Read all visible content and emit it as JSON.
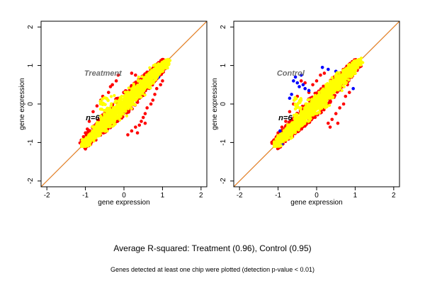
{
  "caption": "Average R-squared: Treatment (0.96), Control (0.95)",
  "footnote": "Genes detected at least one chip were plotted (detection p-value < 0.01)",
  "colors": {
    "replicate_a": "#ff0000",
    "replicate_b": "#0000ff",
    "overlap": "#ffff00",
    "fit_line": "#ff8c00",
    "identity_line": "#0000ff"
  },
  "chart_data": [
    {
      "type": "scatter",
      "title": "Treatment",
      "overlay_label": "n=6",
      "xlabel": "gene expression",
      "ylabel": "gene expression",
      "xlim": [
        -2.15,
        2.15
      ],
      "ylim": [
        -2.15,
        2.15
      ],
      "xticks": [
        -2,
        -1,
        0,
        1,
        2
      ],
      "yticks": [
        -2,
        -1,
        0,
        1,
        2
      ],
      "grid": false,
      "point_cloud": {
        "x_range": [
          -1.1,
          1.2
        ],
        "y_range": [
          -1.1,
          1.25
        ],
        "center": [
          0.0,
          0.0
        ],
        "correlation": 0.96
      },
      "lines": [
        {
          "name": "identity",
          "slope": 1.0,
          "intercept": 0.0,
          "color": "#0000ff"
        },
        {
          "name": "fit",
          "slope": 1.0,
          "intercept": 0.0,
          "color": "#ff8c00"
        }
      ],
      "outliers": {
        "red": [
          [
            0.9,
            0.7
          ],
          [
            1.0,
            0.6
          ],
          [
            0.95,
            0.5
          ],
          [
            0.85,
            0.4
          ],
          [
            0.8,
            0.25
          ],
          [
            0.75,
            0.1
          ],
          [
            0.7,
            0.0
          ],
          [
            0.6,
            -0.1
          ],
          [
            0.55,
            -0.25
          ],
          [
            0.5,
            -0.35
          ],
          [
            0.45,
            -0.45
          ],
          [
            0.4,
            -0.55
          ],
          [
            0.3,
            -0.6
          ],
          [
            -0.2,
            0.6
          ],
          [
            -0.3,
            0.5
          ],
          [
            -0.35,
            0.45
          ],
          [
            -0.4,
            0.3
          ],
          [
            -0.55,
            0.2
          ],
          [
            -0.6,
            0.1
          ],
          [
            -0.7,
            -0.05
          ],
          [
            -0.8,
            -0.2
          ],
          [
            -0.9,
            -0.45
          ],
          [
            -0.95,
            -0.65
          ],
          [
            -1.0,
            -0.75
          ],
          [
            -1.05,
            -0.85
          ],
          [
            -0.85,
            -0.9
          ],
          [
            0.2,
            0.8
          ],
          [
            0.3,
            0.75
          ],
          [
            -0.15,
            0.75
          ],
          [
            0.65,
            0.6
          ],
          [
            0.55,
            -0.5
          ],
          [
            0.35,
            -0.75
          ],
          [
            0.2,
            -0.7
          ],
          [
            0.1,
            -0.8
          ]
        ],
        "blue": [
          [
            0.9,
            0.7
          ],
          [
            0.85,
            0.75
          ],
          [
            0.75,
            0.6
          ]
        ]
      }
    },
    {
      "type": "scatter",
      "title": "Control",
      "overlay_label": "n=6",
      "xlabel": "gene expression",
      "ylabel": "gene expression",
      "xlim": [
        -2.15,
        2.15
      ],
      "ylim": [
        -2.15,
        2.15
      ],
      "xticks": [
        -2,
        -1,
        0,
        1,
        2
      ],
      "yticks": [
        -2,
        -1,
        0,
        1,
        2
      ],
      "grid": false,
      "point_cloud": {
        "x_range": [
          -1.1,
          1.2
        ],
        "y_range": [
          -1.1,
          1.25
        ],
        "center": [
          0.0,
          0.0
        ],
        "correlation": 0.95
      },
      "lines": [
        {
          "name": "identity",
          "slope": 1.0,
          "intercept": 0.0,
          "color": "#0000ff"
        },
        {
          "name": "fit",
          "slope": 1.0,
          "intercept": 0.0,
          "color": "#ff8c00"
        }
      ],
      "outliers": {
        "red": [
          [
            0.2,
            0.8
          ],
          [
            0.1,
            0.75
          ],
          [
            0.0,
            0.6
          ],
          [
            -0.1,
            0.5
          ],
          [
            -0.3,
            0.55
          ],
          [
            -0.4,
            0.6
          ],
          [
            0.8,
            0.5
          ],
          [
            0.85,
            0.3
          ],
          [
            0.75,
            0.2
          ],
          [
            0.7,
            0.0
          ],
          [
            0.6,
            -0.1
          ],
          [
            0.5,
            -0.25
          ],
          [
            0.4,
            -0.4
          ],
          [
            0.3,
            -0.5
          ],
          [
            -0.5,
            0.2
          ],
          [
            -0.6,
            0.0
          ],
          [
            -0.7,
            -0.2
          ],
          [
            -0.8,
            -0.45
          ],
          [
            -0.9,
            -0.6
          ],
          [
            -1.0,
            -0.75
          ],
          [
            0.55,
            -0.5
          ],
          [
            0.35,
            -0.6
          ],
          [
            -0.2,
            0.3
          ]
        ],
        "blue": [
          [
            -0.6,
            0.6
          ],
          [
            -0.5,
            0.55
          ],
          [
            -0.45,
            0.45
          ],
          [
            -0.35,
            0.5
          ],
          [
            -0.3,
            0.4
          ],
          [
            -0.2,
            0.35
          ],
          [
            -0.55,
            0.7
          ],
          [
            -0.4,
            0.75
          ],
          [
            0.15,
            0.95
          ],
          [
            0.3,
            0.9
          ],
          [
            0.5,
            0.85
          ],
          [
            -0.65,
            0.25
          ],
          [
            -0.7,
            0.15
          ],
          [
            -0.95,
            -0.7
          ],
          [
            -0.9,
            -1.05
          ],
          [
            -1.0,
            -1.05
          ],
          [
            0.95,
            0.4
          ]
        ]
      }
    }
  ]
}
